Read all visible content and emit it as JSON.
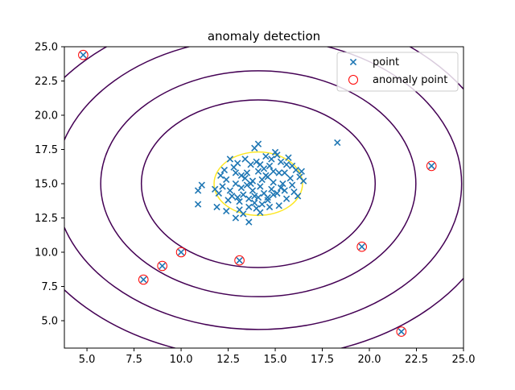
{
  "chart_data": {
    "type": "scatter",
    "title": "anomaly detection",
    "xlabel": "",
    "ylabel": "",
    "xlim": [
      3.8,
      25.0
    ],
    "ylim": [
      3.0,
      25.0
    ],
    "grid": false,
    "legend_placement": "top-right",
    "x_ticks": [
      5.0,
      7.5,
      10.0,
      12.5,
      15.0,
      17.5,
      20.0,
      22.5,
      25.0
    ],
    "y_ticks": [
      5.0,
      7.5,
      10.0,
      12.5,
      15.0,
      17.5,
      20.0,
      22.5,
      25.0
    ],
    "x_tick_labels": [
      "5.0",
      "7.5",
      "10.0",
      "12.5",
      "15.0",
      "17.5",
      "20.0",
      "22.5",
      "25.0"
    ],
    "y_tick_labels": [
      "5.0",
      "7.5",
      "10.0",
      "12.5",
      "15.0",
      "17.5",
      "20.0",
      "22.5",
      "25.0"
    ],
    "gaussian": {
      "mean": [
        14.1,
        15.0
      ],
      "std": [
        1.35,
        1.33
      ]
    },
    "contour_sigmas": [
      1.74,
      4.6,
      6.2,
      8.0,
      9.6
    ],
    "series": [
      {
        "name": "point",
        "marker": "x",
        "color": "#1f77b4",
        "points": [
          [
            13.8,
            15.2
          ],
          [
            14.2,
            14.8
          ],
          [
            14.6,
            15.5
          ],
          [
            13.5,
            14.9
          ],
          [
            14.9,
            15.1
          ],
          [
            13.2,
            15.6
          ],
          [
            14.4,
            16.1
          ],
          [
            15.1,
            14.3
          ],
          [
            13.9,
            14.1
          ],
          [
            12.9,
            15.0
          ],
          [
            14.7,
            16.3
          ],
          [
            15.5,
            15.8
          ],
          [
            13.6,
            13.9
          ],
          [
            14.1,
            15.9
          ],
          [
            12.6,
            14.5
          ],
          [
            15.8,
            15.4
          ],
          [
            13.3,
            14.2
          ],
          [
            14.8,
            14.6
          ],
          [
            15.3,
            16.6
          ],
          [
            12.4,
            15.3
          ],
          [
            13.7,
            16.4
          ],
          [
            14.3,
            13.5
          ],
          [
            15.9,
            14.9
          ],
          [
            12.2,
            14.8
          ],
          [
            16.1,
            16.0
          ],
          [
            13.1,
            13.7
          ],
          [
            14.5,
            17.0
          ],
          [
            15.6,
            13.9
          ],
          [
            12.8,
            16.2
          ],
          [
            14.0,
            13.2
          ],
          [
            16.3,
            15.5
          ],
          [
            11.8,
            14.6
          ],
          [
            13.4,
            16.8
          ],
          [
            15.2,
            13.4
          ],
          [
            14.6,
            14.0
          ],
          [
            12.5,
            13.8
          ],
          [
            16.5,
            15.2
          ],
          [
            13.0,
            16.5
          ],
          [
            15.7,
            16.9
          ],
          [
            14.2,
            12.9
          ],
          [
            12.1,
            15.6
          ],
          [
            15.0,
            17.3
          ],
          [
            13.6,
            13.3
          ],
          [
            16.0,
            14.4
          ],
          [
            14.9,
            15.9
          ],
          [
            12.7,
            14.1
          ],
          [
            13.9,
            17.6
          ],
          [
            15.4,
            15.0
          ],
          [
            14.4,
            14.3
          ],
          [
            13.2,
            14.7
          ],
          [
            11.9,
            13.3
          ],
          [
            11.1,
            14.9
          ],
          [
            10.9,
            14.5
          ],
          [
            10.9,
            13.5
          ],
          [
            12.6,
            16.8
          ],
          [
            12.9,
            12.5
          ],
          [
            13.6,
            12.2
          ],
          [
            14.1,
            17.9
          ],
          [
            15.1,
            17.1
          ],
          [
            12.4,
            13.0
          ],
          [
            13.1,
            13.1
          ],
          [
            15.9,
            16.3
          ],
          [
            14.7,
            13.3
          ],
          [
            16.2,
            14.1
          ],
          [
            13.8,
            14.5
          ],
          [
            14.5,
            15.6
          ],
          [
            13.5,
            15.8
          ],
          [
            14.0,
            16.6
          ],
          [
            15.3,
            14.7
          ],
          [
            12.3,
            16.0
          ],
          [
            14.8,
            16.8
          ],
          [
            13.0,
            14.0
          ],
          [
            14.3,
            15.3
          ],
          [
            13.7,
            15.0
          ],
          [
            15.6,
            16.4
          ],
          [
            12.9,
            15.8
          ],
          [
            14.1,
            14.0
          ],
          [
            15.2,
            15.8
          ],
          [
            13.4,
            15.4
          ],
          [
            14.6,
            13.8
          ],
          [
            18.3,
            18.0
          ],
          [
            13.3,
            12.8
          ],
          [
            12.0,
            14.3
          ],
          [
            16.4,
            15.9
          ],
          [
            13.9,
            13.6
          ],
          [
            14.9,
            14.2
          ],
          [
            14.2,
            16.4
          ],
          [
            15.5,
            14.5
          ]
        ]
      },
      {
        "name": "anomaly point",
        "marker": "o",
        "color": "#ff0000",
        "points": [
          [
            4.8,
            24.4
          ],
          [
            8.0,
            8.0
          ],
          [
            9.0,
            9.0
          ],
          [
            10.0,
            10.0
          ],
          [
            13.1,
            9.4
          ],
          [
            19.6,
            10.4
          ],
          [
            21.7,
            4.2
          ],
          [
            23.3,
            16.3
          ]
        ]
      }
    ],
    "contour_colors": {
      "outer": "#440154",
      "inner": "#fde725"
    }
  }
}
